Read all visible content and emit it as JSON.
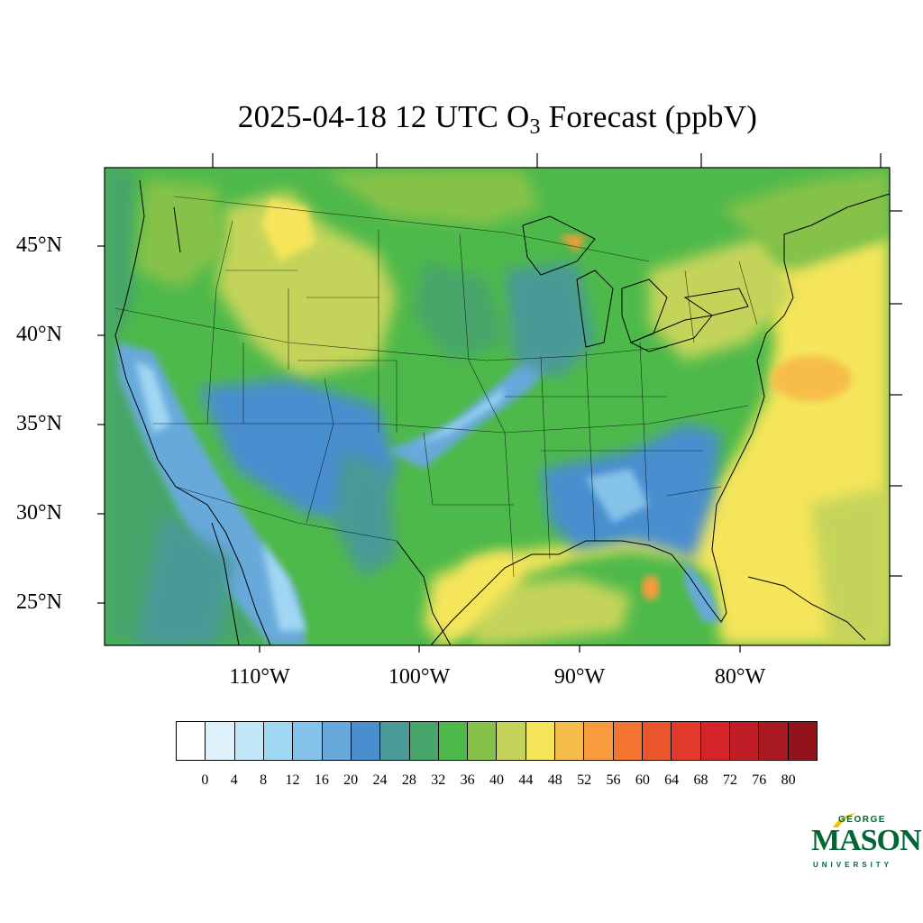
{
  "title": {
    "main": "2025-04-18 12 UTC O",
    "subscript": "3",
    "rest": " Forecast (ppbV)"
  },
  "lat_labels": [
    "45°N",
    "40°N",
    "35°N",
    "30°N",
    "25°N"
  ],
  "lon_labels": [
    "110°W",
    "100°W",
    "90°W",
    "80°W"
  ],
  "colorbar": {
    "ticks": [
      "0",
      "4",
      "8",
      "12",
      "16",
      "20",
      "24",
      "28",
      "32",
      "36",
      "40",
      "44",
      "48",
      "52",
      "56",
      "60",
      "64",
      "68",
      "72",
      "76",
      "80"
    ],
    "colors": [
      "#ffffff",
      "#dff2fb",
      "#c0e6f7",
      "#a0d7f2",
      "#86c3ea",
      "#68a9dc",
      "#4a8ecf",
      "#4a9a97",
      "#47a56b",
      "#4db94a",
      "#86c24a",
      "#c4d45a",
      "#f5e55a",
      "#f6bd4a",
      "#f79b3e",
      "#f47431",
      "#ea552c",
      "#e1392a",
      "#d42329",
      "#bf1e27",
      "#a81a22",
      "#901419"
    ]
  },
  "logo": {
    "line1": "GEORGE",
    "line2": "MASON",
    "line3": "UNIVERSITY",
    "color": "#006633",
    "accent": "#f2c500"
  }
}
